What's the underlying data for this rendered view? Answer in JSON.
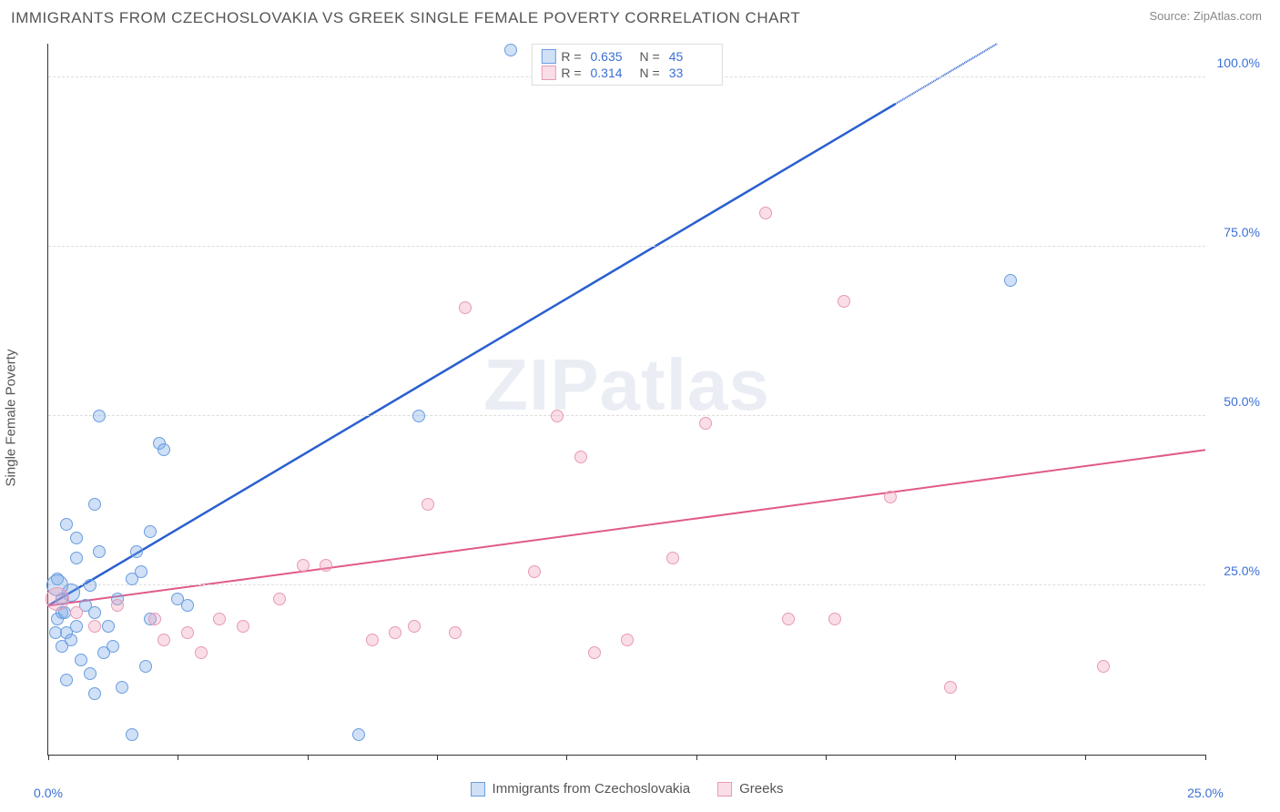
{
  "header": {
    "title": "IMMIGRANTS FROM CZECHOSLOVAKIA VS GREEK SINGLE FEMALE POVERTY CORRELATION CHART",
    "source": "Source: ZipAtlas.com"
  },
  "chart": {
    "type": "scatter",
    "watermark": "ZIPatlas",
    "background_color": "#ffffff",
    "grid_color": "#dddddd",
    "axis_color": "#333333",
    "y_axis_label": "Single Female Poverty",
    "xlim": [
      0,
      25
    ],
    "ylim": [
      0,
      105
    ],
    "y_ticks": [
      25,
      50,
      75,
      100
    ],
    "y_tick_labels": [
      "25.0%",
      "50.0%",
      "75.0%",
      "100.0%"
    ],
    "x_tick_positions": [
      0,
      2.8,
      5.6,
      8.4,
      11.2,
      14,
      16.8,
      19.6,
      22.4,
      25
    ],
    "x_axis_labels": [
      {
        "pos": 0,
        "label": "0.0%"
      },
      {
        "pos": 25,
        "label": "25.0%"
      }
    ],
    "label_color": "#3b6fd6",
    "label_fontsize": 14,
    "series": [
      {
        "id": "czech",
        "name": "Immigrants from Czechoslovakia",
        "fill": "rgba(120,165,230,0.35)",
        "stroke": "#6a9de0",
        "line_color": "#2a5fd0",
        "r_value": "0.635",
        "n_value": "45",
        "trend": {
          "x1": 0,
          "y1": 22,
          "x2": 20.5,
          "y2": 105,
          "dash_from_x": 18.3
        },
        "points": [
          {
            "x": 0.2,
            "y": 20,
            "r": 7
          },
          {
            "x": 0.3,
            "y": 21,
            "r": 7
          },
          {
            "x": 0.5,
            "y": 24,
            "r": 10
          },
          {
            "x": 0.4,
            "y": 18,
            "r": 7
          },
          {
            "x": 0.6,
            "y": 19,
            "r": 7
          },
          {
            "x": 0.3,
            "y": 16,
            "r": 7
          },
          {
            "x": 0.8,
            "y": 22,
            "r": 7
          },
          {
            "x": 0.6,
            "y": 29,
            "r": 7
          },
          {
            "x": 0.4,
            "y": 34,
            "r": 7
          },
          {
            "x": 0.2,
            "y": 26,
            "r": 7
          },
          {
            "x": 1.0,
            "y": 21,
            "r": 7
          },
          {
            "x": 1.2,
            "y": 15,
            "r": 7
          },
          {
            "x": 0.9,
            "y": 12,
            "r": 7
          },
          {
            "x": 1.1,
            "y": 30,
            "r": 7
          },
          {
            "x": 1.0,
            "y": 37,
            "r": 7
          },
          {
            "x": 1.5,
            "y": 23,
            "r": 7
          },
          {
            "x": 1.4,
            "y": 16,
            "r": 7
          },
          {
            "x": 1.6,
            "y": 10,
            "r": 7
          },
          {
            "x": 0.4,
            "y": 11,
            "r": 7
          },
          {
            "x": 1.8,
            "y": 26,
            "r": 7
          },
          {
            "x": 2.0,
            "y": 27,
            "r": 7
          },
          {
            "x": 2.1,
            "y": 13,
            "r": 7
          },
          {
            "x": 2.2,
            "y": 20,
            "r": 7
          },
          {
            "x": 2.4,
            "y": 46,
            "r": 7
          },
          {
            "x": 2.5,
            "y": 45,
            "r": 7
          },
          {
            "x": 2.8,
            "y": 23,
            "r": 7
          },
          {
            "x": 2.2,
            "y": 33,
            "r": 7
          },
          {
            "x": 3.0,
            "y": 22,
            "r": 7
          },
          {
            "x": 1.1,
            "y": 50,
            "r": 7
          },
          {
            "x": 1.0,
            "y": 9,
            "r": 7
          },
          {
            "x": 1.8,
            "y": 3,
            "r": 7
          },
          {
            "x": 6.7,
            "y": 3,
            "r": 7
          },
          {
            "x": 8.0,
            "y": 50,
            "r": 7
          },
          {
            "x": 10.0,
            "y": 104,
            "r": 7
          },
          {
            "x": 20.8,
            "y": 70,
            "r": 7
          },
          {
            "x": 0.7,
            "y": 14,
            "r": 7
          },
          {
            "x": 0.5,
            "y": 17,
            "r": 7
          },
          {
            "x": 1.3,
            "y": 19,
            "r": 7
          },
          {
            "x": 0.3,
            "y": 23,
            "r": 7
          },
          {
            "x": 0.2,
            "y": 25,
            "r": 12
          },
          {
            "x": 0.15,
            "y": 18,
            "r": 7
          },
          {
            "x": 0.6,
            "y": 32,
            "r": 7
          },
          {
            "x": 1.9,
            "y": 30,
            "r": 7
          },
          {
            "x": 0.35,
            "y": 21,
            "r": 7
          },
          {
            "x": 0.9,
            "y": 25,
            "r": 7
          }
        ]
      },
      {
        "id": "greek",
        "name": "Greeks",
        "fill": "rgba(240,160,185,0.35)",
        "stroke": "#e89ab5",
        "line_color": "#e05a8a",
        "r_value": "0.314",
        "n_value": "33",
        "trend": {
          "x1": 0,
          "y1": 22,
          "x2": 25,
          "y2": 45
        },
        "points": [
          {
            "x": 0.2,
            "y": 23,
            "r": 13
          },
          {
            "x": 0.6,
            "y": 21,
            "r": 7
          },
          {
            "x": 1.0,
            "y": 19,
            "r": 7
          },
          {
            "x": 1.5,
            "y": 22,
            "r": 7
          },
          {
            "x": 2.3,
            "y": 20,
            "r": 7
          },
          {
            "x": 2.5,
            "y": 17,
            "r": 7
          },
          {
            "x": 3.0,
            "y": 18,
            "r": 7
          },
          {
            "x": 3.3,
            "y": 15,
            "r": 7
          },
          {
            "x": 3.7,
            "y": 20,
            "r": 7
          },
          {
            "x": 4.2,
            "y": 19,
            "r": 7
          },
          {
            "x": 5.0,
            "y": 23,
            "r": 7
          },
          {
            "x": 5.5,
            "y": 28,
            "r": 7
          },
          {
            "x": 6.0,
            "y": 28,
            "r": 7
          },
          {
            "x": 7.0,
            "y": 17,
            "r": 7
          },
          {
            "x": 7.5,
            "y": 18,
            "r": 7
          },
          {
            "x": 7.9,
            "y": 19,
            "r": 7
          },
          {
            "x": 8.2,
            "y": 37,
            "r": 7
          },
          {
            "x": 8.8,
            "y": 18,
            "r": 7
          },
          {
            "x": 9.0,
            "y": 66,
            "r": 7
          },
          {
            "x": 10.5,
            "y": 27,
            "r": 7
          },
          {
            "x": 11.0,
            "y": 50,
            "r": 7
          },
          {
            "x": 11.5,
            "y": 44,
            "r": 7
          },
          {
            "x": 11.8,
            "y": 15,
            "r": 7
          },
          {
            "x": 12.5,
            "y": 17,
            "r": 7
          },
          {
            "x": 13.5,
            "y": 29,
            "r": 7
          },
          {
            "x": 14.2,
            "y": 49,
            "r": 7
          },
          {
            "x": 15.5,
            "y": 80,
            "r": 7
          },
          {
            "x": 16.0,
            "y": 20,
            "r": 7
          },
          {
            "x": 17.0,
            "y": 20,
            "r": 7
          },
          {
            "x": 17.2,
            "y": 67,
            "r": 7
          },
          {
            "x": 18.2,
            "y": 38,
            "r": 7
          },
          {
            "x": 19.5,
            "y": 10,
            "r": 7
          },
          {
            "x": 22.8,
            "y": 13,
            "r": 7
          }
        ]
      }
    ]
  }
}
